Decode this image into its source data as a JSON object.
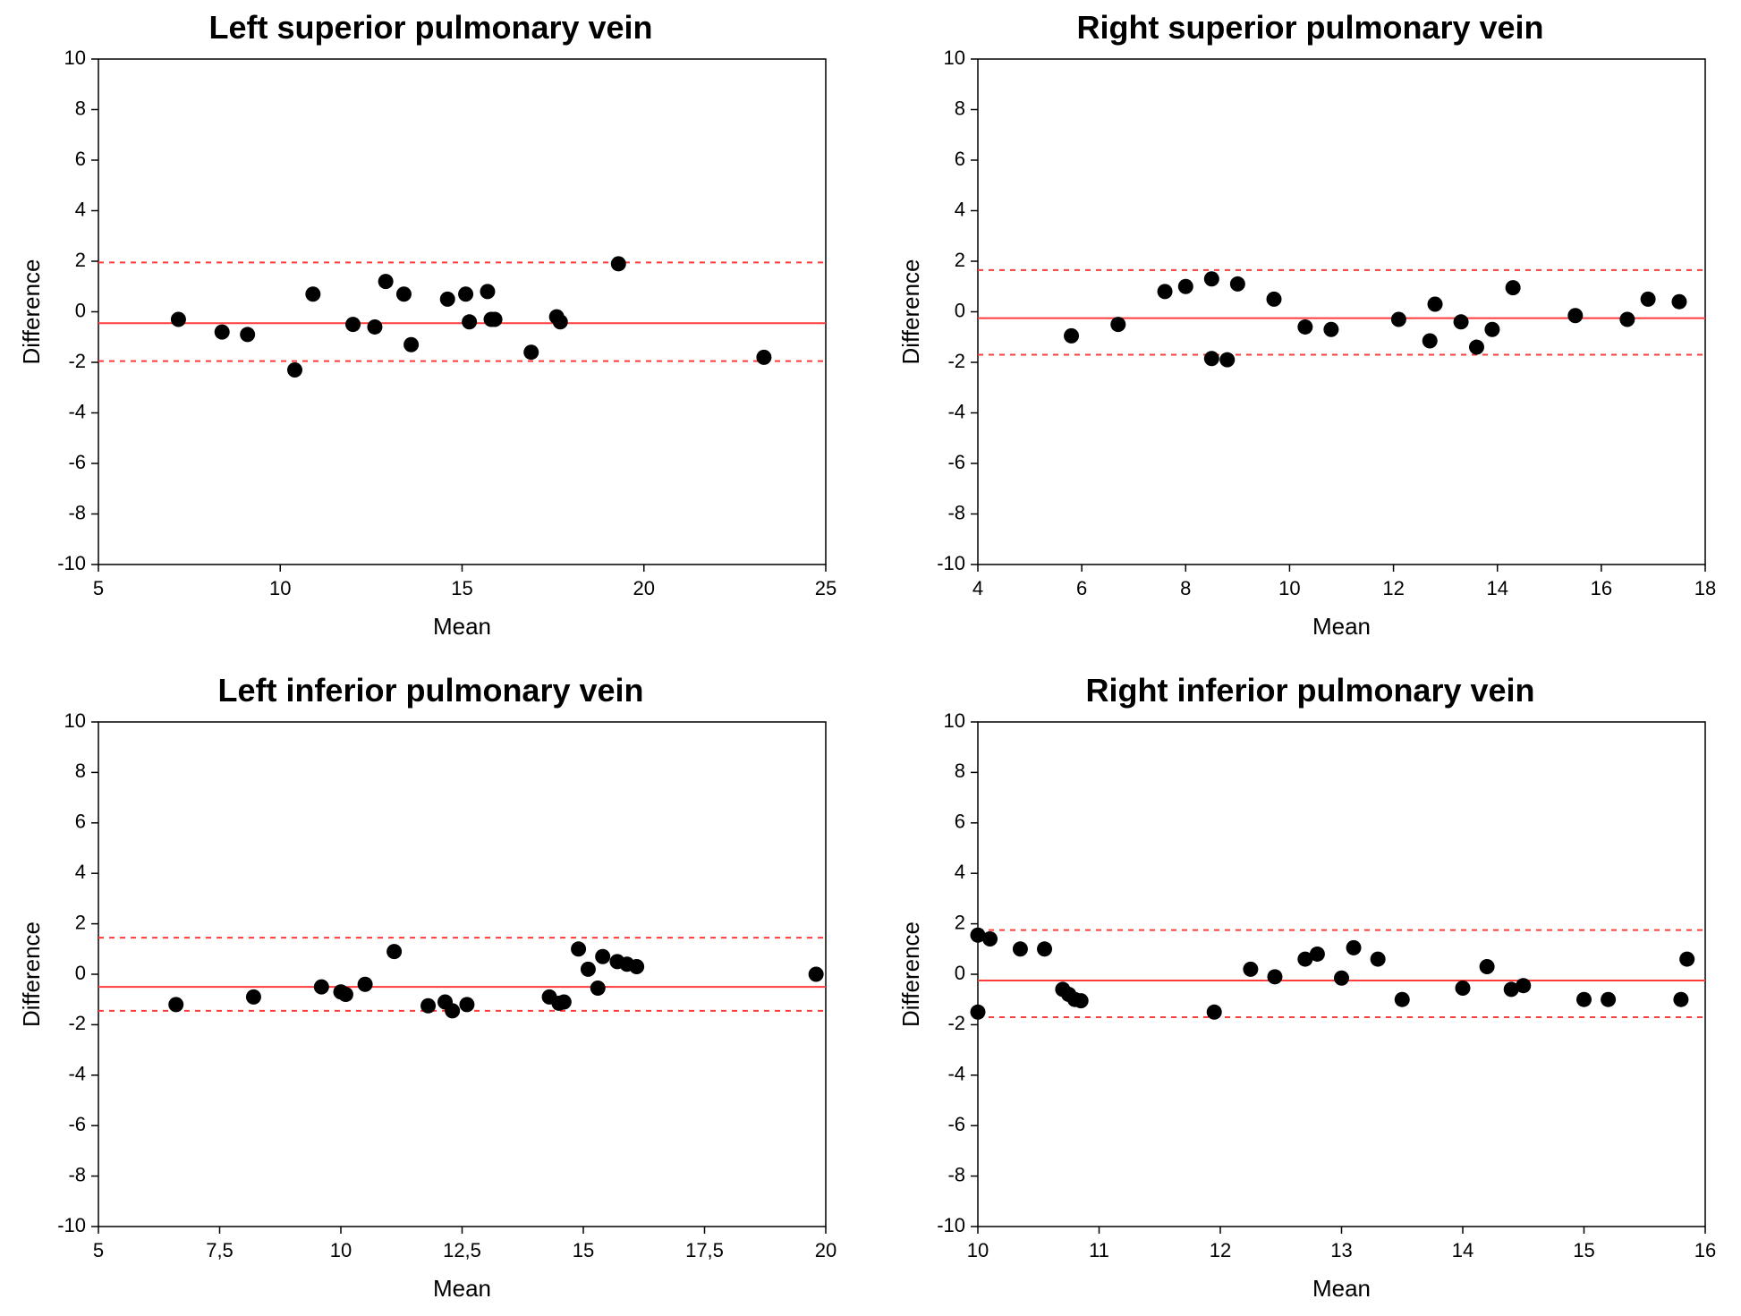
{
  "layout": {
    "rows": 2,
    "cols": 2,
    "background_color": "#ffffff"
  },
  "style": {
    "title_fontsize": 36,
    "title_fontweight": 700,
    "axis_label_fontsize": 26,
    "tick_fontsize": 22,
    "axis_color": "#000000",
    "tick_color": "#000000",
    "mean_line_color": "#ff3b3b",
    "loa_line_color": "#ff3b3b",
    "mean_line_width": 2,
    "loa_line_width": 2,
    "loa_dash": "6,6",
    "marker_color": "#000000",
    "marker_radius": 8.5,
    "plot_border_width": 1.5
  },
  "panels": [
    {
      "id": "lspv",
      "type": "scatter-bland-altman",
      "title": "Left superior pulmonary vein",
      "xlabel": "Mean",
      "ylabel": "Difference",
      "xlim": [
        5,
        25
      ],
      "ylim": [
        -10,
        10
      ],
      "xticks": [
        5,
        10,
        15,
        20,
        25
      ],
      "yticks": [
        -10,
        -8,
        -6,
        -4,
        -2,
        0,
        2,
        4,
        6,
        8,
        10
      ],
      "mean_line": -0.45,
      "loa_upper": 1.95,
      "loa_lower": -1.95,
      "points": [
        {
          "x": 7.2,
          "y": -0.3
        },
        {
          "x": 8.4,
          "y": -0.8
        },
        {
          "x": 9.1,
          "y": -0.9
        },
        {
          "x": 10.4,
          "y": -2.3
        },
        {
          "x": 10.9,
          "y": 0.7
        },
        {
          "x": 12.0,
          "y": -0.5
        },
        {
          "x": 12.6,
          "y": -0.6
        },
        {
          "x": 12.9,
          "y": 1.2
        },
        {
          "x": 13.4,
          "y": 0.7
        },
        {
          "x": 13.6,
          "y": -1.3
        },
        {
          "x": 14.6,
          "y": 0.5
        },
        {
          "x": 15.1,
          "y": 0.7
        },
        {
          "x": 15.2,
          "y": -0.4
        },
        {
          "x": 15.7,
          "y": 0.8
        },
        {
          "x": 15.8,
          "y": -0.3
        },
        {
          "x": 15.9,
          "y": -0.3
        },
        {
          "x": 16.9,
          "y": -1.6
        },
        {
          "x": 17.6,
          "y": -0.2
        },
        {
          "x": 17.7,
          "y": -0.4
        },
        {
          "x": 19.3,
          "y": 1.9
        },
        {
          "x": 23.3,
          "y": -1.8
        }
      ]
    },
    {
      "id": "rspv",
      "type": "scatter-bland-altman",
      "title": "Right superior pulmonary vein",
      "xlabel": "Mean",
      "ylabel": "Difference",
      "xlim": [
        4,
        18
      ],
      "ylim": [
        -10,
        10
      ],
      "xticks": [
        4,
        6,
        8,
        10,
        12,
        14,
        16,
        18
      ],
      "yticks": [
        -10,
        -8,
        -6,
        -4,
        -2,
        0,
        2,
        4,
        6,
        8,
        10
      ],
      "mean_line": -0.25,
      "loa_upper": 1.65,
      "loa_lower": -1.7,
      "points": [
        {
          "x": 5.8,
          "y": -0.95
        },
        {
          "x": 6.7,
          "y": -0.5
        },
        {
          "x": 7.6,
          "y": 0.8
        },
        {
          "x": 8.0,
          "y": 1.0
        },
        {
          "x": 8.5,
          "y": 1.3
        },
        {
          "x": 8.5,
          "y": -1.85
        },
        {
          "x": 8.8,
          "y": -1.9
        },
        {
          "x": 9.0,
          "y": 1.1
        },
        {
          "x": 9.7,
          "y": 0.5
        },
        {
          "x": 10.3,
          "y": -0.6
        },
        {
          "x": 10.8,
          "y": -0.7
        },
        {
          "x": 12.1,
          "y": -0.3
        },
        {
          "x": 12.7,
          "y": -1.15
        },
        {
          "x": 12.8,
          "y": 0.3
        },
        {
          "x": 13.3,
          "y": -0.4
        },
        {
          "x": 13.6,
          "y": -1.4
        },
        {
          "x": 13.9,
          "y": -0.7
        },
        {
          "x": 14.3,
          "y": 0.95
        },
        {
          "x": 15.5,
          "y": -0.15
        },
        {
          "x": 16.5,
          "y": -0.3
        },
        {
          "x": 16.9,
          "y": 0.5
        },
        {
          "x": 17.5,
          "y": 0.4
        }
      ]
    },
    {
      "id": "lipv",
      "type": "scatter-bland-altman",
      "title": "Left inferior pulmonary vein",
      "xlabel": "Mean",
      "ylabel": "Difference",
      "xlim": [
        5,
        20
      ],
      "ylim": [
        -10,
        10
      ],
      "xticks": [
        5,
        7.5,
        10,
        12.5,
        15,
        17.5,
        20
      ],
      "xtick_labels": [
        "5",
        "7,5",
        "10",
        "12,5",
        "15",
        "17,5",
        "20"
      ],
      "yticks": [
        -10,
        -8,
        -6,
        -4,
        -2,
        0,
        2,
        4,
        6,
        8,
        10
      ],
      "mean_line": -0.5,
      "loa_upper": 1.45,
      "loa_lower": -1.45,
      "points": [
        {
          "x": 6.6,
          "y": -1.2
        },
        {
          "x": 8.2,
          "y": -0.9
        },
        {
          "x": 9.6,
          "y": -0.5
        },
        {
          "x": 10.0,
          "y": -0.7
        },
        {
          "x": 10.1,
          "y": -0.8
        },
        {
          "x": 10.5,
          "y": -0.4
        },
        {
          "x": 11.1,
          "y": 0.9
        },
        {
          "x": 11.8,
          "y": -1.25
        },
        {
          "x": 12.15,
          "y": -1.1
        },
        {
          "x": 12.3,
          "y": -1.45
        },
        {
          "x": 12.6,
          "y": -1.2
        },
        {
          "x": 14.3,
          "y": -0.9
        },
        {
          "x": 14.5,
          "y": -1.15
        },
        {
          "x": 14.6,
          "y": -1.1
        },
        {
          "x": 14.9,
          "y": 1.0
        },
        {
          "x": 15.1,
          "y": 0.2
        },
        {
          "x": 15.3,
          "y": -0.55
        },
        {
          "x": 15.4,
          "y": 0.7
        },
        {
          "x": 15.7,
          "y": 0.5
        },
        {
          "x": 15.9,
          "y": 0.4
        },
        {
          "x": 16.1,
          "y": 0.3
        },
        {
          "x": 19.8,
          "y": 0.0
        }
      ]
    },
    {
      "id": "ripv",
      "type": "scatter-bland-altman",
      "title": "Right inferior pulmonary vein",
      "xlabel": "Mean",
      "ylabel": "Difference",
      "xlim": [
        10,
        16
      ],
      "ylim": [
        -10,
        10
      ],
      "xticks": [
        10,
        11,
        12,
        13,
        14,
        15,
        16
      ],
      "yticks": [
        -10,
        -8,
        -6,
        -4,
        -2,
        0,
        2,
        4,
        6,
        8,
        10
      ],
      "mean_line": -0.25,
      "loa_upper": 1.75,
      "loa_lower": -1.7,
      "points": [
        {
          "x": 10.0,
          "y": 1.55
        },
        {
          "x": 10.0,
          "y": -1.5
        },
        {
          "x": 10.1,
          "y": 1.4
        },
        {
          "x": 10.35,
          "y": 1.0
        },
        {
          "x": 10.55,
          "y": 1.0
        },
        {
          "x": 10.7,
          "y": -0.6
        },
        {
          "x": 10.75,
          "y": -0.8
        },
        {
          "x": 10.8,
          "y": -1.0
        },
        {
          "x": 10.85,
          "y": -1.05
        },
        {
          "x": 11.95,
          "y": -1.5
        },
        {
          "x": 12.25,
          "y": 0.2
        },
        {
          "x": 12.45,
          "y": -0.1
        },
        {
          "x": 12.7,
          "y": 0.6
        },
        {
          "x": 12.8,
          "y": 0.8
        },
        {
          "x": 13.0,
          "y": -0.15
        },
        {
          "x": 13.1,
          "y": 1.05
        },
        {
          "x": 13.3,
          "y": 0.6
        },
        {
          "x": 13.5,
          "y": -1.0
        },
        {
          "x": 14.0,
          "y": -0.55
        },
        {
          "x": 14.2,
          "y": 0.3
        },
        {
          "x": 14.4,
          "y": -0.6
        },
        {
          "x": 14.5,
          "y": -0.45
        },
        {
          "x": 15.0,
          "y": -1.0
        },
        {
          "x": 15.2,
          "y": -1.0
        },
        {
          "x": 15.8,
          "y": -1.0
        },
        {
          "x": 15.85,
          "y": 0.6
        }
      ]
    }
  ]
}
